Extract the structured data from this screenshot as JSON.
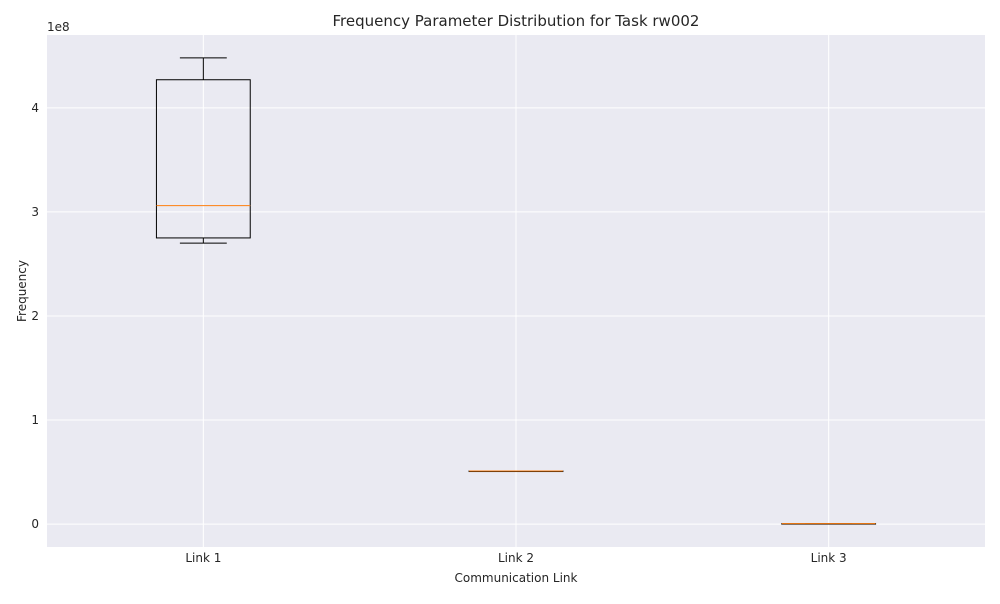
{
  "chart_data": {
    "type": "boxplot",
    "title": "Frequency Parameter Distribution for Task rw002",
    "xlabel": "Communication Link",
    "ylabel": "Frequency",
    "y_offset_label": "1e8",
    "y_scale_factor": 100000000,
    "ylim": [
      -22000000,
      470000000
    ],
    "yticks": [
      0,
      100000000,
      200000000,
      300000000,
      400000000
    ],
    "ytick_labels": [
      "0",
      "1",
      "2",
      "3",
      "4"
    ],
    "categories": [
      "Link 1",
      "Link 2",
      "Link 3"
    ],
    "boxes": [
      {
        "name": "Link 1",
        "whisker_low": 270000000,
        "q1": 275000000,
        "median": 306000000,
        "q3": 427000000,
        "whisker_high": 448000000
      },
      {
        "name": "Link 2",
        "whisker_low": 51000000,
        "q1": 51000000,
        "median": 51000000,
        "q3": 51000000,
        "whisker_high": 51000000
      },
      {
        "name": "Link 3",
        "whisker_low": 500000,
        "q1": 500000,
        "median": 500000,
        "q3": 500000,
        "whisker_high": 500000
      }
    ],
    "grid": true,
    "style": {
      "background": "#eaeaf2",
      "grid_color": "#ffffff",
      "box_color": "#000000",
      "median_color": "#ff7f0e"
    }
  }
}
